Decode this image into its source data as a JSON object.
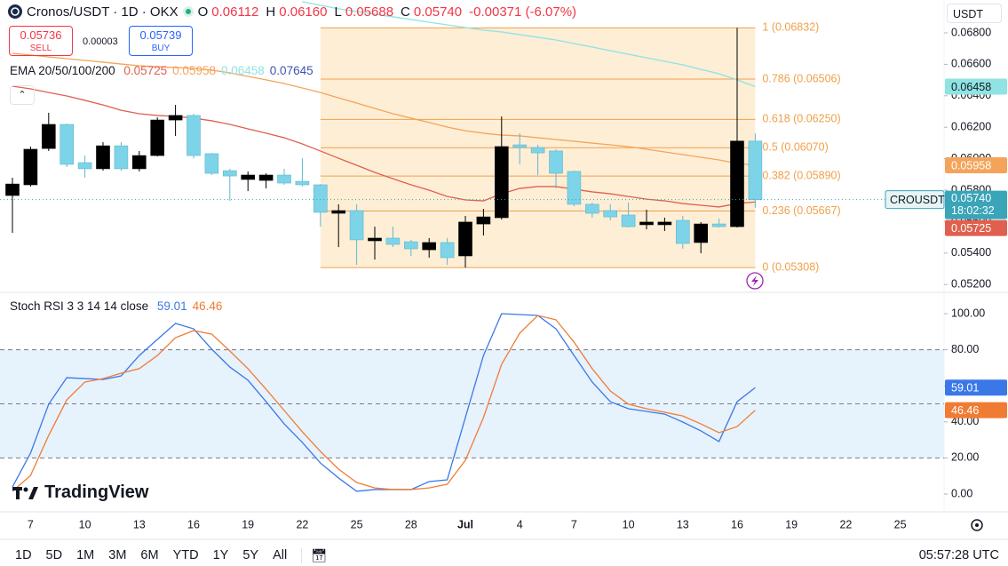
{
  "header": {
    "symbol": "Cronos/USDT · 1D · OKX",
    "ohlc": [
      {
        "key": "O",
        "value": "0.06112"
      },
      {
        "key": "H",
        "value": "0.06160"
      },
      {
        "key": "L",
        "value": "0.05688"
      },
      {
        "key": "C",
        "value": "0.05740"
      }
    ],
    "change": "-0.00371 (-6.07%)"
  },
  "trade": {
    "sell_price": "0.05736",
    "sell": "SELL",
    "spread": "0.00003",
    "buy_price": "0.05739",
    "buy": "BUY"
  },
  "currency": "USDT",
  "last_price": {
    "symbol": "CROUSDT",
    "price": "0.05740",
    "countdown": "18:02:32"
  },
  "logo": "TradingView",
  "ranges": [
    "1D",
    "5D",
    "1M",
    "3M",
    "6M",
    "YTD",
    "1Y",
    "5Y",
    "All"
  ],
  "clock": "05:57:28 UTC",
  "chart_data": [
    {
      "type": "candlestick",
      "categories": [
        null,
        "7",
        null,
        null,
        "10",
        null,
        null,
        "13",
        null,
        null,
        "16",
        null,
        null,
        "19",
        null,
        null,
        "22",
        null,
        null,
        "25",
        null,
        null,
        "28",
        null,
        null,
        "Jul",
        null,
        null,
        "4",
        null,
        null,
        "7",
        null,
        null,
        "10",
        null,
        null,
        "13",
        null,
        null,
        "16",
        null,
        null,
        "19",
        null,
        null,
        "22",
        null,
        null,
        "25"
      ],
      "open": [
        0.05766,
        0.05834,
        0.06065,
        0.06218,
        0.05975,
        0.05936,
        0.06082,
        0.05936,
        0.0602,
        0.06246,
        0.06275,
        0.06032,
        0.05924,
        0.05868,
        0.05862,
        0.05896,
        0.05856,
        0.05834,
        0.05653,
        0.0567,
        0.05478,
        0.05495,
        0.05472,
        0.05421,
        0.05467,
        0.05382,
        0.05585,
        0.05625,
        0.06088,
        0.06071,
        0.06049,
        0.05919,
        0.0571,
        0.0567,
        0.05642,
        0.0558,
        0.0558,
        0.05608,
        0.05467,
        0.05585,
        0.05568,
        0.06112,
        null,
        null,
        null,
        null,
        null,
        null,
        null,
        null
      ],
      "high": [
        0.05879,
        0.06077,
        0.06292,
        0.06224,
        0.0602,
        0.06105,
        0.06105,
        0.06049,
        0.06263,
        0.06342,
        0.06286,
        0.06037,
        0.05936,
        0.05919,
        0.05907,
        0.05936,
        0.06003,
        0.05839,
        0.0571,
        0.0571,
        0.05568,
        0.05568,
        0.05484,
        0.05495,
        0.05495,
        0.05636,
        0.05681,
        0.06269,
        0.06162,
        0.06088,
        0.0606,
        0.05924,
        0.05721,
        0.0571,
        0.05721,
        0.05676,
        0.05625,
        0.05636,
        0.05597,
        0.05619,
        0.06832,
        0.0616,
        null,
        null,
        null,
        null,
        null,
        null,
        null,
        null
      ],
      "low": [
        0.05529,
        0.05823,
        0.06049,
        0.05947,
        0.05879,
        0.05924,
        0.05924,
        0.05919,
        0.06015,
        0.06145,
        0.06003,
        0.05896,
        0.05732,
        0.05794,
        0.05811,
        0.05834,
        0.05823,
        0.05568,
        0.05438,
        0.05325,
        0.05359,
        0.05438,
        0.05382,
        0.05371,
        0.05325,
        0.05308,
        0.05512,
        0.05613,
        0.05964,
        0.05896,
        0.05811,
        0.05698,
        0.05625,
        0.05608,
        0.05563,
        0.05551,
        0.0554,
        0.05427,
        0.05399,
        0.05563,
        0.05563,
        0.05688,
        null,
        null,
        null,
        null,
        null,
        null,
        null,
        null
      ],
      "close": [
        0.05839,
        0.0606,
        0.06218,
        0.05964,
        0.05936,
        0.06082,
        0.05936,
        0.0602,
        0.06246,
        0.06275,
        0.0602,
        0.05907,
        0.0589,
        0.05896,
        0.05896,
        0.05845,
        0.05834,
        0.05659,
        0.0567,
        0.05484,
        0.05495,
        0.05455,
        0.05427,
        0.05467,
        0.05371,
        0.05597,
        0.0563,
        0.06077,
        0.06071,
        0.06037,
        0.05907,
        0.0571,
        0.05653,
        0.0563,
        0.05568,
        0.05597,
        0.05597,
        0.05461,
        0.05585,
        0.05568,
        0.06112,
        0.0574,
        null,
        null,
        null,
        null,
        null,
        null,
        null,
        null
      ],
      "up_color": "#000000",
      "down_color": "#7dd3e8",
      "ylim": [
        0.05156,
        0.07009
      ],
      "yticks": [
        {
          "value": 0.068,
          "label": "0.06800"
        },
        {
          "value": 0.066,
          "label": "0.06600"
        },
        {
          "value": 0.064,
          "label": "0.06400"
        },
        {
          "value": 0.062,
          "label": "0.06200"
        },
        {
          "value": 0.06,
          "label": "0.06000"
        },
        {
          "value": 0.058,
          "label": "0.05800"
        },
        {
          "value": 0.056,
          "label": "0.05600"
        },
        {
          "value": 0.054,
          "label": "0.05400"
        },
        {
          "value": 0.052,
          "label": "0.05200"
        }
      ],
      "ema": {
        "label": "EMA 20/50/100/200",
        "last": [
          0.05725,
          0.05958,
          0.06458,
          0.07645
        ],
        "colors": [
          "#e0604f",
          "#f4a45a",
          "#8fe3e3",
          "#3f51b5"
        ],
        "series": [
          {
            "values": [
              0.06461,
              0.06444,
              0.06421,
              0.06399,
              0.06371,
              0.06342,
              0.06308,
              0.06286,
              0.06275,
              0.06269,
              0.06258,
              0.06241,
              0.06218,
              0.0619,
              0.06162,
              0.06133,
              0.06094,
              0.06049,
              0.06003,
              0.05958,
              0.05913,
              0.05873,
              0.05834,
              0.058,
              0.0576,
              0.05738,
              0.05732,
              0.05777,
              0.05811,
              0.05823,
              0.05823,
              0.05806,
              0.05789,
              0.05777,
              0.0576,
              0.05743,
              0.05732,
              0.05715,
              0.05704,
              0.05693,
              0.05715,
              0.05725,
              null,
              null,
              null,
              null,
              null,
              null,
              null,
              null
            ]
          },
          {
            "values": [
              0.0667,
              0.06659,
              0.06647,
              0.06636,
              0.06625,
              0.06614,
              0.06602,
              0.06591,
              0.06585,
              0.0658,
              0.06574,
              0.06563,
              0.06546,
              0.06523,
              0.06501,
              0.06478,
              0.0645,
              0.06421,
              0.06387,
              0.06354,
              0.0632,
              0.06286,
              0.06258,
              0.0623,
              0.06201,
              0.06178,
              0.06162,
              0.0615,
              0.06145,
              0.06133,
              0.06122,
              0.06111,
              0.06099,
              0.06088,
              0.06077,
              0.0606,
              0.06043,
              0.06026,
              0.06009,
              0.05992,
              0.0597,
              0.05958,
              null,
              null,
              null,
              null,
              null,
              null,
              null,
              null
            ]
          },
          {
            "values": [
              null,
              null,
              null,
              null,
              null,
              null,
              null,
              null,
              null,
              null,
              null,
              null,
              null,
              null,
              null,
              null,
              0.06998,
              0.06975,
              0.06953,
              0.06936,
              0.06919,
              0.06902,
              0.06885,
              0.06868,
              0.06851,
              0.06834,
              0.06817,
              0.06806,
              0.06789,
              0.06772,
              0.06755,
              0.06732,
              0.0671,
              0.06687,
              0.06664,
              0.06642,
              0.06619,
              0.06597,
              0.06568,
              0.0654,
              0.06501,
              0.06458,
              null,
              null,
              null,
              null,
              null,
              null,
              null,
              null
            ]
          }
        ]
      },
      "fib": {
        "values": [
          0.06832,
          0.06506,
          0.0625,
          0.0607,
          0.0589,
          0.05667,
          0.05308
        ],
        "value_labels": [
          "1 (0.06832)",
          "0.786 (0.06506)",
          "0.618 (0.06250)",
          "0.5 (0.06070)",
          "0.382 (0.05890)",
          "0.236 (0.05667)",
          "0 (0.05308)"
        ],
        "color": "#f0a04b",
        "fill": "#fde8c8"
      }
    },
    {
      "type": "line",
      "title": "Stoch RSI 3 3 14 14 close",
      "series": [
        {
          "color": "#3b78e7",
          "values": [
            3.9,
            22.7,
            49.8,
            64.5,
            64.0,
            63.5,
            65.5,
            76.8,
            85.7,
            94.6,
            91.6,
            80.3,
            70.4,
            63.1,
            51.2,
            38.9,
            28.6,
            17.2,
            8.9,
            1.5,
            2.5,
            2.5,
            2.5,
            6.9,
            7.9,
            42.4,
            76.8,
            100,
            99.5,
            99.0,
            91.6,
            76.8,
            62.1,
            51.2,
            47.3,
            45.8,
            44.3,
            39.9,
            35.0,
            29.1,
            51.2,
            59.01,
            null,
            null,
            null,
            null,
            null,
            null,
            null,
            null
          ]
        },
        {
          "color": "#f07c34",
          "values": [
            1.5,
            10.3,
            32.5,
            52.2,
            62.1,
            64.0,
            67.0,
            69.5,
            76.8,
            86.7,
            90.6,
            88.7,
            79.3,
            69.5,
            58.1,
            46.3,
            34.5,
            23.6,
            13.8,
            6.4,
            3.4,
            2.5,
            2.5,
            3.4,
            5.4,
            18.7,
            42.4,
            71.9,
            89.2,
            99.0,
            96.6,
            84.2,
            69.5,
            57.1,
            49.8,
            47.3,
            45.3,
            43.3,
            38.9,
            34.0,
            37.4,
            46.46,
            null,
            null,
            null,
            null,
            null,
            null,
            null,
            null
          ]
        }
      ],
      "ylim": [
        -9.36,
        111.33
      ],
      "yticks": [
        {
          "value": 100,
          "label": "100.00"
        },
        {
          "value": 80,
          "label": "80.00"
        },
        {
          "value": 60,
          "label": "60.00"
        },
        {
          "value": 40,
          "label": "40.00"
        },
        {
          "value": 20,
          "label": "20.00"
        },
        {
          "value": 0,
          "label": "0.00"
        }
      ],
      "band": [
        20,
        80
      ],
      "band_color": "#e6f2fc",
      "hlines": [
        80,
        50,
        20
      ]
    }
  ]
}
